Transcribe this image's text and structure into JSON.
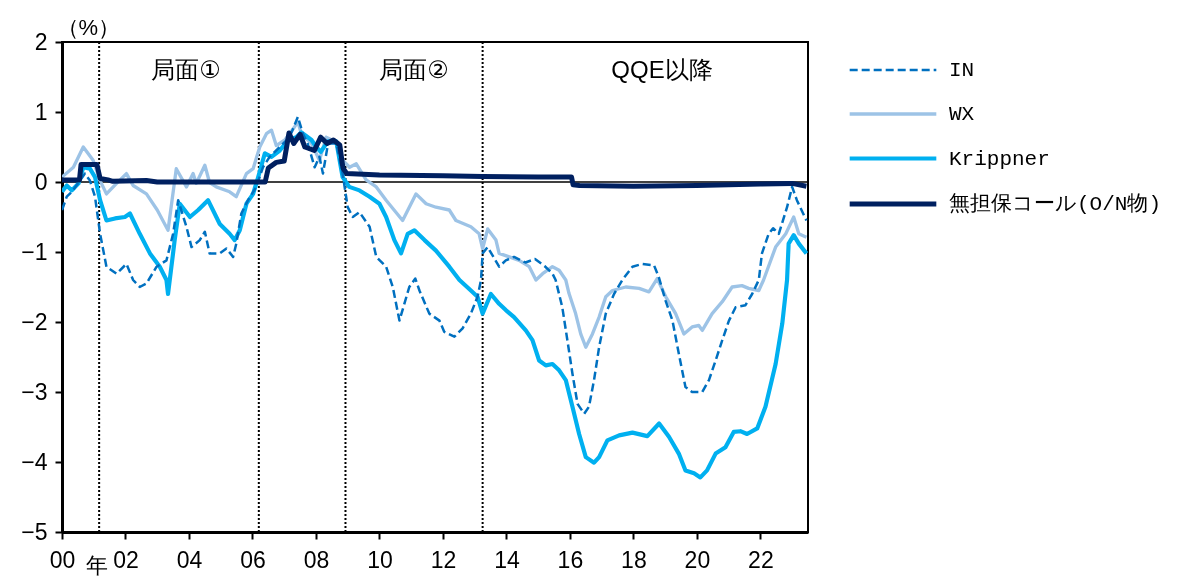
{
  "chart_data": {
    "type": "line",
    "xlabel": "年",
    "ylabel": "（%）",
    "xlim": [
      2000,
      2023.5
    ],
    "xticks": [
      {
        "value": 2000,
        "label": "00"
      },
      {
        "value": 2002,
        "label": "02"
      },
      {
        "value": 2004,
        "label": "04"
      },
      {
        "value": 2006,
        "label": "06"
      },
      {
        "value": 2008,
        "label": "08"
      },
      {
        "value": 2010,
        "label": "10"
      },
      {
        "value": 2012,
        "label": "12"
      },
      {
        "value": 2014,
        "label": "14"
      },
      {
        "value": 2016,
        "label": "16"
      },
      {
        "value": 2018,
        "label": "18"
      },
      {
        "value": 2020,
        "label": "20"
      },
      {
        "value": 2022,
        "label": "22"
      }
    ],
    "ylim": [
      -5,
      2
    ],
    "yticks": [
      -5,
      -4,
      -3,
      -2,
      -1,
      0,
      1,
      2
    ],
    "legend": "right",
    "ref_lines": [
      {
        "axis": "y",
        "value": 0,
        "color": "#000000",
        "line_style": "solid"
      },
      {
        "axis": "x",
        "value": 2001.17,
        "color": "#000000",
        "line_style": "dotted"
      },
      {
        "axis": "x",
        "value": 2006.2,
        "color": "#000000",
        "line_style": "dotted"
      },
      {
        "axis": "x",
        "value": 2008.93,
        "color": "#000000",
        "line_style": "dotted"
      },
      {
        "axis": "x",
        "value": 2013.25,
        "color": "#000000",
        "line_style": "dotted"
      }
    ],
    "annotations": [
      "局面①",
      "局面②",
      "QQE以降"
    ],
    "series": [
      {
        "name": "IN",
        "color": "#0070c0",
        "line_style": "dashed",
        "x": [
          2000,
          2000.15,
          2000.31,
          2000.57,
          2000.72,
          2000.88,
          2001.04,
          2001.2,
          2001.4,
          2001.72,
          2002.03,
          2002.24,
          2002.45,
          2002.66,
          2002.98,
          2003.29,
          2003.5,
          2003.66,
          2003.92,
          2004.08,
          2004.34,
          2004.5,
          2004.65,
          2004.97,
          2005.18,
          2005.39,
          2005.49,
          2005.65,
          2005.86,
          2006.12,
          2006.33,
          2006.54,
          2006.86,
          2007.17,
          2007.43,
          2007.59,
          2007.74,
          2007.96,
          2008.11,
          2008.22,
          2008.38,
          2008.64,
          2008.84,
          2009,
          2009.16,
          2009.37,
          2009.69,
          2009.9,
          2010.21,
          2010.42,
          2010.63,
          2010.94,
          2011.13,
          2011.26,
          2011.57,
          2011.89,
          2012.04,
          2012.36,
          2012.62,
          2012.88,
          2013.09,
          2013.2,
          2013.25,
          2013.41,
          2013.77,
          2013.98,
          2014.24,
          2014.6,
          2014.9,
          2015.2,
          2015.45,
          2015.55,
          2015.76,
          2015.92,
          2016.08,
          2016.24,
          2016.45,
          2016.6,
          2016.76,
          2016.92,
          2017.13,
          2017.39,
          2017.65,
          2017.97,
          2018.28,
          2018.65,
          2018.8,
          2019.01,
          2019.23,
          2019.43,
          2019.64,
          2019.85,
          2020.17,
          2020.38,
          2020.59,
          2020.8,
          2021.01,
          2021.22,
          2021.53,
          2021.74,
          2021.95,
          2022.05,
          2022.26,
          2022.4,
          2022.58,
          2022.84,
          2023,
          2023.15,
          2023.45
        ],
        "values": [
          -0.4,
          -0.21,
          -0.14,
          0.02,
          0.12,
          0.02,
          -0.21,
          -0.74,
          -1.21,
          -1.31,
          -1.17,
          -1.4,
          -1.5,
          -1.45,
          -1.21,
          -1.12,
          -0.74,
          -0.26,
          -0.64,
          -0.93,
          -0.83,
          -0.71,
          -1.02,
          -1.02,
          -0.95,
          -1.07,
          -0.88,
          -0.45,
          -0.26,
          -0.07,
          0.21,
          0.36,
          0.5,
          0.64,
          0.93,
          0.69,
          0.55,
          0.21,
          0.36,
          0.12,
          0.55,
          0.55,
          0.12,
          -0.36,
          -0.5,
          -0.43,
          -0.64,
          -1.07,
          -1.21,
          -1.5,
          -1.98,
          -1.5,
          -1.38,
          -1.55,
          -1.88,
          -1.98,
          -2.14,
          -2.21,
          -2.09,
          -1.88,
          -1.64,
          -1.4,
          -1.02,
          -0.93,
          -1.21,
          -1.12,
          -1.07,
          -1.15,
          -1.1,
          -1.2,
          -1.31,
          -1.4,
          -1.79,
          -2.26,
          -2.74,
          -3.17,
          -3.31,
          -3.21,
          -2.83,
          -2.36,
          -1.88,
          -1.6,
          -1.4,
          -1.21,
          -1.17,
          -1.19,
          -1.36,
          -1.69,
          -1.98,
          -2.45,
          -2.93,
          -3,
          -3,
          -2.83,
          -2.55,
          -2.26,
          -1.98,
          -1.79,
          -1.76,
          -1.6,
          -1.4,
          -1.02,
          -0.74,
          -0.66,
          -0.74,
          -0.36,
          -0.07,
          -0.26,
          -0.55
        ]
      },
      {
        "name": "WX",
        "color": "#9dc3e6",
        "line_style": "solid",
        "x": [
          2000,
          2000.36,
          2000.67,
          2000.98,
          2001.2,
          2001.4,
          2001.72,
          2002.03,
          2002.24,
          2002.66,
          2003,
          2003.34,
          2003.6,
          2003.92,
          2004.13,
          2004.23,
          2004.5,
          2004.65,
          2004.86,
          2005.28,
          2005.49,
          2005.81,
          2006.02,
          2006.23,
          2006.44,
          2006.6,
          2006.75,
          2007.02,
          2007.33,
          2007.43,
          2007.54,
          2007.86,
          2008.11,
          2008.32,
          2008.64,
          2008.84,
          2009.06,
          2009.27,
          2009.58,
          2009.9,
          2010.21,
          2010.73,
          2010.94,
          2011.15,
          2011.47,
          2011.78,
          2012.2,
          2012.41,
          2012.88,
          2013.14,
          2013.25,
          2013.41,
          2013.67,
          2013.77,
          2014.09,
          2014.4,
          2014.72,
          2014.93,
          2015.14,
          2015.45,
          2015.66,
          2015.87,
          2015.97,
          2016.18,
          2016.34,
          2016.5,
          2016.71,
          2016.92,
          2017.13,
          2017.34,
          2017.76,
          2018.18,
          2018.49,
          2018.75,
          2019.02,
          2019.33,
          2019.59,
          2019.85,
          2020.06,
          2020.17,
          2020.48,
          2020.8,
          2021.11,
          2021.42,
          2021.63,
          2021.95,
          2022.1,
          2022.48,
          2022.8,
          2023.05,
          2023.21,
          2023.45
        ],
        "values": [
          0.07,
          0.21,
          0.5,
          0.31,
          0.02,
          -0.17,
          -0.02,
          0.12,
          -0.05,
          -0.17,
          -0.4,
          -0.69,
          0.19,
          -0.07,
          0.12,
          -0.02,
          0.24,
          -0.01,
          -0.07,
          -0.14,
          -0.21,
          0.12,
          0.19,
          0.5,
          0.69,
          0.74,
          0.52,
          0.6,
          0.79,
          0.86,
          0.69,
          0.55,
          0.31,
          0.64,
          0.57,
          0.31,
          0.21,
          0.26,
          0.03,
          -0.07,
          -0.26,
          -0.55,
          -0.36,
          -0.17,
          -0.31,
          -0.36,
          -0.4,
          -0.55,
          -0.64,
          -0.74,
          -0.95,
          -0.67,
          -0.83,
          -1.02,
          -1.07,
          -1.12,
          -1.21,
          -1.4,
          -1.31,
          -1.21,
          -1.26,
          -1.4,
          -1.59,
          -1.88,
          -2.17,
          -2.36,
          -2.17,
          -1.93,
          -1.64,
          -1.55,
          -1.5,
          -1.52,
          -1.57,
          -1.38,
          -1.64,
          -1.88,
          -2.17,
          -2.07,
          -2.05,
          -2.12,
          -1.88,
          -1.71,
          -1.5,
          -1.48,
          -1.52,
          -1.55,
          -1.4,
          -0.93,
          -0.74,
          -0.5,
          -0.74,
          -0.79
        ]
      },
      {
        "name": "Krippner",
        "color": "#00b0f0",
        "line_style": "solid",
        "x": [
          2000,
          2000.15,
          2000.31,
          2000.52,
          2000.67,
          2000.88,
          2001.04,
          2001.2,
          2001.4,
          2001.67,
          2001.98,
          2002.14,
          2002.45,
          2002.77,
          2003.08,
          2003.29,
          2003.34,
          2003.55,
          2003.71,
          2004.03,
          2004.29,
          2004.6,
          2004.97,
          2005.28,
          2005.44,
          2005.6,
          2005.81,
          2006.02,
          2006.18,
          2006.39,
          2006.6,
          2006.86,
          2007.12,
          2007.38,
          2007.54,
          2007.86,
          2008.01,
          2008.15,
          2008.38,
          2008.64,
          2008.84,
          2009.05,
          2009.37,
          2009.69,
          2010,
          2010.21,
          2010.47,
          2010.68,
          2010.89,
          2011.1,
          2011.42,
          2011.78,
          2012.2,
          2012.52,
          2012.88,
          2013.09,
          2013.25,
          2013.51,
          2013.77,
          2013.98,
          2014.24,
          2014.61,
          2014.82,
          2015.03,
          2015.24,
          2015.45,
          2015.66,
          2015.87,
          2016.08,
          2016.29,
          2016.5,
          2016.76,
          2016.92,
          2017.18,
          2017.55,
          2017.97,
          2018.44,
          2018.81,
          2019.12,
          2019.43,
          2019.64,
          2019.91,
          2020.11,
          2020.32,
          2020.59,
          2020.9,
          2021.16,
          2021.37,
          2021.58,
          2021.9,
          2022.16,
          2022.48,
          2022.69,
          2022.84,
          2022.89,
          2023.05,
          2023.21,
          2023.45
        ],
        "values": [
          -0.14,
          -0.05,
          -0.12,
          -0.02,
          0.21,
          0.19,
          0.07,
          -0.26,
          -0.55,
          -0.52,
          -0.5,
          -0.45,
          -0.74,
          -1.02,
          -1.21,
          -1.4,
          -1.6,
          -0.83,
          -0.31,
          -0.5,
          -0.4,
          -0.26,
          -0.6,
          -0.74,
          -0.83,
          -0.69,
          -0.31,
          -0.17,
          0.07,
          0.41,
          0.36,
          0.45,
          0.6,
          0.64,
          0.71,
          0.6,
          0.5,
          0.43,
          0.58,
          0.58,
          0.07,
          -0.07,
          -0.12,
          -0.21,
          -0.31,
          -0.5,
          -0.83,
          -1.02,
          -0.74,
          -0.69,
          -0.83,
          -0.98,
          -1.21,
          -1.4,
          -1.55,
          -1.64,
          -1.88,
          -1.6,
          -1.74,
          -1.83,
          -1.93,
          -2.12,
          -2.26,
          -2.55,
          -2.62,
          -2.6,
          -2.69,
          -2.83,
          -3.21,
          -3.6,
          -3.93,
          -4.01,
          -3.93,
          -3.69,
          -3.62,
          -3.58,
          -3.63,
          -3.45,
          -3.64,
          -3.88,
          -4.12,
          -4.16,
          -4.22,
          -4.12,
          -3.88,
          -3.79,
          -3.57,
          -3.56,
          -3.6,
          -3.52,
          -3.21,
          -2.6,
          -2.02,
          -1.4,
          -0.88,
          -0.76,
          -0.88,
          -1.02
        ]
      },
      {
        "name": "無担保コール(O/N物)",
        "color": "#002060",
        "line_style": "solid",
        "x": [
          2000,
          2000.55,
          2000.6,
          2001.1,
          2001.2,
          2001.45,
          2001.6,
          2002.66,
          2003,
          2006.4,
          2006.5,
          2006.75,
          2007,
          2007.15,
          2007.3,
          2007.5,
          2007.65,
          2007.95,
          2008.15,
          2008.35,
          2008.55,
          2008.75,
          2008.85,
          2008.97,
          2010,
          2012,
          2013.25,
          2015,
          2016.05,
          2016.1,
          2016.3,
          2018,
          2020,
          2022,
          2023,
          2023.45
        ],
        "values": [
          0.03,
          0.03,
          0.25,
          0.25,
          0.05,
          0.03,
          0.01,
          0.02,
          0,
          0,
          0.2,
          0.28,
          0.3,
          0.7,
          0.55,
          0.68,
          0.5,
          0.45,
          0.64,
          0.55,
          0.6,
          0.53,
          0.2,
          0.12,
          0.1,
          0.09,
          0.08,
          0.07,
          0.07,
          -0.04,
          -0.05,
          -0.06,
          -0.05,
          -0.03,
          -0.02,
          -0.06
        ]
      }
    ]
  }
}
